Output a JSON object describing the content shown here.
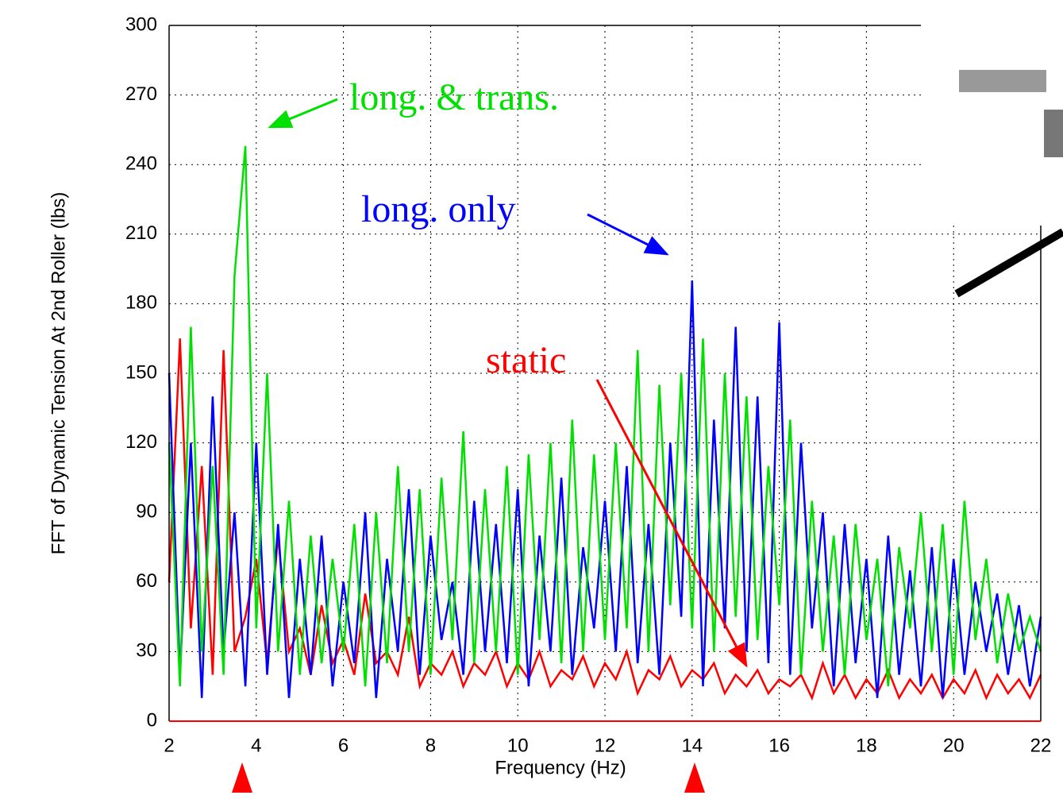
{
  "chart_data": {
    "type": "line",
    "xlabel": "Frequency (Hz)",
    "ylabel": "FFT of Dynamic Tension At 2nd Roller (lbs)",
    "annotations": [
      "long. & trans.",
      "long. only",
      "static"
    ],
    "x": [
      2,
      2.25,
      2.5,
      2.75,
      3,
      3.25,
      3.5,
      3.75,
      4,
      4.25,
      4.5,
      4.75,
      5,
      5.25,
      5.5,
      5.75,
      6,
      6.25,
      6.5,
      6.75,
      7,
      7.25,
      7.5,
      7.75,
      8,
      8.25,
      8.5,
      8.75,
      9,
      9.25,
      9.5,
      9.75,
      10,
      10.25,
      10.5,
      10.75,
      11,
      11.25,
      11.5,
      11.75,
      12,
      12.25,
      12.5,
      12.75,
      13,
      13.25,
      13.5,
      13.75,
      14,
      14.25,
      14.5,
      14.75,
      15,
      15.25,
      15.5,
      15.75,
      16,
      16.25,
      16.5,
      16.75,
      17,
      17.25,
      17.5,
      17.75,
      18,
      18.25,
      18.5,
      18.75,
      19,
      19.25,
      19.5,
      19.75,
      20,
      20.25,
      20.5,
      20.75,
      21,
      21.25,
      21.5,
      21.75,
      22
    ],
    "series": [
      {
        "name": "static",
        "color": "#ff0000",
        "values": [
          60,
          165,
          40,
          110,
          20,
          160,
          30,
          45,
          70,
          25,
          80,
          30,
          40,
          20,
          50,
          25,
          35,
          20,
          55,
          25,
          30,
          20,
          45,
          15,
          25,
          20,
          30,
          15,
          25,
          20,
          30,
          15,
          25,
          18,
          30,
          15,
          22,
          18,
          28,
          15,
          25,
          18,
          30,
          12,
          22,
          18,
          28,
          15,
          22,
          18,
          25,
          12,
          20,
          15,
          22,
          12,
          18,
          15,
          20,
          10,
          25,
          12,
          20,
          10,
          18,
          12,
          22,
          10,
          18,
          12,
          20,
          10,
          18,
          12,
          22,
          10,
          20,
          12,
          18,
          10,
          20
        ]
      },
      {
        "name": "long. only",
        "color": "#0000ff",
        "values": [
          150,
          20,
          120,
          10,
          140,
          30,
          90,
          15,
          120,
          20,
          85,
          10,
          70,
          20,
          80,
          15,
          60,
          25,
          90,
          10,
          70,
          30,
          100,
          20,
          80,
          35,
          60,
          20,
          95,
          30,
          85,
          25,
          100,
          15,
          80,
          30,
          105,
          20,
          75,
          40,
          95,
          30,
          110,
          25,
          85,
          20,
          120,
          45,
          190,
          15,
          130,
          40,
          170,
          30,
          140,
          25,
          172,
          20,
          120,
          40,
          90,
          15,
          85,
          25,
          70,
          10,
          80,
          20,
          65,
          15,
          75,
          10,
          70,
          20,
          60,
          30,
          55,
          20,
          50,
          15,
          45
        ]
      },
      {
        "name": "long. & trans.",
        "color": "#00e000",
        "values": [
          120,
          15,
          170,
          30,
          110,
          20,
          192,
          248,
          40,
          150,
          30,
          95,
          20,
          80,
          25,
          70,
          30,
          85,
          15,
          90,
          25,
          110,
          30,
          100,
          20,
          105,
          35,
          125,
          25,
          100,
          30,
          110,
          20,
          115,
          35,
          120,
          25,
          130,
          30,
          115,
          35,
          120,
          40,
          160,
          30,
          145,
          50,
          150,
          40,
          165,
          30,
          150,
          45,
          140,
          35,
          110,
          50,
          130,
          20,
          95,
          30,
          80,
          20,
          85,
          35,
          70,
          15,
          75,
          40,
          90,
          30,
          85,
          20,
          95,
          35,
          70,
          25,
          55,
          30,
          45,
          30
        ]
      }
    ],
    "xlim": [
      2,
      22
    ],
    "xticks": [
      2,
      4,
      6,
      8,
      10,
      12,
      14,
      16,
      18,
      20,
      22
    ],
    "ylim": [
      0,
      300
    ],
    "yticks": [
      0,
      30,
      60,
      90,
      120,
      150,
      180,
      210,
      240,
      270,
      300
    ],
    "grid": true
  }
}
